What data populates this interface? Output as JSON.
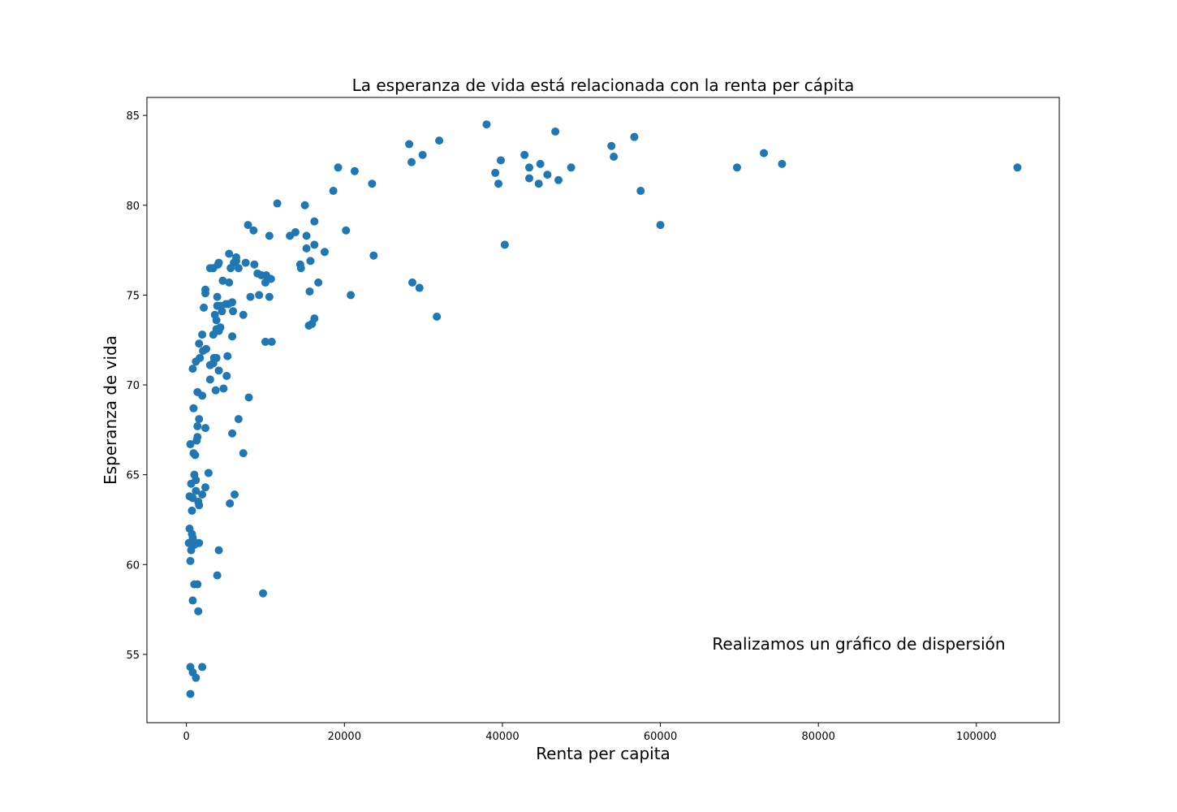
{
  "chart_data": {
    "type": "scatter",
    "title": "La esperanza de vida está relacionada con la renta per cápita",
    "xlabel": "Renta per capita",
    "ylabel": "Esperanza de vida",
    "annotation": "Realizamos un gráfico de dispersión",
    "xlim": [
      -5000,
      110500
    ],
    "ylim": [
      51.2,
      86.0
    ],
    "xticks": [
      0,
      20000,
      40000,
      60000,
      80000,
      100000
    ],
    "xtick_labels": [
      "0",
      "20000",
      "40000",
      "60000",
      "80000",
      "100000"
    ],
    "yticks": [
      55,
      60,
      65,
      70,
      75,
      80,
      85
    ],
    "ytick_labels": [
      "55",
      "60",
      "65",
      "70",
      "75",
      "80",
      "85"
    ],
    "grid": false,
    "marker_color": "#1f77b4",
    "points": [
      [
        38000,
        84.5
      ],
      [
        46700,
        84.1
      ],
      [
        56700,
        83.8
      ],
      [
        32000,
        83.6
      ],
      [
        28200,
        83.4
      ],
      [
        53800,
        83.3
      ],
      [
        73100,
        82.9
      ],
      [
        29900,
        82.8
      ],
      [
        42800,
        82.8
      ],
      [
        54100,
        82.7
      ],
      [
        39800,
        82.5
      ],
      [
        28500,
        82.4
      ],
      [
        44800,
        82.3
      ],
      [
        75400,
        82.3
      ],
      [
        19200,
        82.1
      ],
      [
        43400,
        82.1
      ],
      [
        48700,
        82.1
      ],
      [
        69700,
        82.1
      ],
      [
        105200,
        82.1
      ],
      [
        21300,
        81.9
      ],
      [
        39100,
        81.8
      ],
      [
        45700,
        81.7
      ],
      [
        43400,
        81.5
      ],
      [
        47100,
        81.4
      ],
      [
        23500,
        81.2
      ],
      [
        39500,
        81.2
      ],
      [
        44600,
        81.2
      ],
      [
        18600,
        80.8
      ],
      [
        57500,
        80.8
      ],
      [
        11500,
        80.1
      ],
      [
        15000,
        80.0
      ],
      [
        16200,
        79.1
      ],
      [
        7800,
        78.9
      ],
      [
        60000,
        78.9
      ],
      [
        8500,
        78.6
      ],
      [
        20200,
        78.6
      ],
      [
        13800,
        78.5
      ],
      [
        10500,
        78.3
      ],
      [
        13100,
        78.3
      ],
      [
        15200,
        78.3
      ],
      [
        40300,
        77.8
      ],
      [
        16200,
        77.8
      ],
      [
        15200,
        77.6
      ],
      [
        17500,
        77.4
      ],
      [
        5400,
        77.3
      ],
      [
        23700,
        77.2
      ],
      [
        6300,
        77.1
      ],
      [
        6300,
        76.9
      ],
      [
        15700,
        76.9
      ],
      [
        4100,
        76.8
      ],
      [
        7500,
        76.8
      ],
      [
        6000,
        76.8
      ],
      [
        4000,
        76.7
      ],
      [
        8600,
        76.7
      ],
      [
        14400,
        76.7
      ],
      [
        5600,
        76.5
      ],
      [
        3000,
        76.5
      ],
      [
        3400,
        76.5
      ],
      [
        6600,
        76.5
      ],
      [
        14500,
        76.5
      ],
      [
        9000,
        76.2
      ],
      [
        9500,
        76.1
      ],
      [
        10100,
        76.1
      ],
      [
        10700,
        75.9
      ],
      [
        4600,
        75.8
      ],
      [
        16700,
        75.7
      ],
      [
        5400,
        75.7
      ],
      [
        10000,
        75.7
      ],
      [
        28600,
        75.7
      ],
      [
        29500,
        75.4
      ],
      [
        2400,
        75.3
      ],
      [
        15600,
        75.2
      ],
      [
        2400,
        75.1
      ],
      [
        20800,
        75.0
      ],
      [
        9200,
        75.0
      ],
      [
        3900,
        74.9
      ],
      [
        8100,
        74.9
      ],
      [
        10500,
        74.9
      ],
      [
        5800,
        74.6
      ],
      [
        5000,
        74.5
      ],
      [
        5300,
        74.5
      ],
      [
        3900,
        74.4
      ],
      [
        4300,
        74.4
      ],
      [
        2200,
        74.3
      ],
      [
        4500,
        74.1
      ],
      [
        5900,
        74.1
      ],
      [
        3600,
        73.9
      ],
      [
        7200,
        73.9
      ],
      [
        31700,
        73.8
      ],
      [
        16200,
        73.7
      ],
      [
        3800,
        73.6
      ],
      [
        15900,
        73.4
      ],
      [
        15500,
        73.3
      ],
      [
        4300,
        73.2
      ],
      [
        3800,
        73.1
      ],
      [
        4100,
        73.0
      ],
      [
        2000,
        72.8
      ],
      [
        3400,
        72.8
      ],
      [
        5800,
        72.7
      ],
      [
        10000,
        72.4
      ],
      [
        10800,
        72.4
      ],
      [
        1600,
        72.3
      ],
      [
        2500,
        72.0
      ],
      [
        2100,
        71.9
      ],
      [
        5200,
        71.6
      ],
      [
        1700,
        71.5
      ],
      [
        3500,
        71.5
      ],
      [
        3800,
        71.5
      ],
      [
        3400,
        71.2
      ],
      [
        1200,
        71.3
      ],
      [
        3000,
        71.1
      ],
      [
        800,
        70.9
      ],
      [
        4100,
        70.8
      ],
      [
        5100,
        70.5
      ],
      [
        3000,
        70.3
      ],
      [
        4700,
        69.8
      ],
      [
        3700,
        69.7
      ],
      [
        1400,
        69.6
      ],
      [
        2000,
        69.4
      ],
      [
        7900,
        69.3
      ],
      [
        900,
        68.7
      ],
      [
        1600,
        68.1
      ],
      [
        6600,
        68.1
      ],
      [
        1400,
        67.7
      ],
      [
        2400,
        67.6
      ],
      [
        5800,
        67.3
      ],
      [
        1400,
        67.1
      ],
      [
        1300,
        66.9
      ],
      [
        500,
        66.7
      ],
      [
        7200,
        66.2
      ],
      [
        900,
        66.2
      ],
      [
        1100,
        66.1
      ],
      [
        2800,
        65.1
      ],
      [
        1000,
        65.0
      ],
      [
        1200,
        64.7
      ],
      [
        600,
        64.5
      ],
      [
        2400,
        64.3
      ],
      [
        1200,
        64.1
      ],
      [
        2000,
        63.9
      ],
      [
        6100,
        63.9
      ],
      [
        400,
        63.8
      ],
      [
        800,
        63.7
      ],
      [
        1500,
        63.5
      ],
      [
        1600,
        63.3
      ],
      [
        5500,
        63.4
      ],
      [
        700,
        63.0
      ],
      [
        400,
        62.0
      ],
      [
        700,
        61.7
      ],
      [
        800,
        61.5
      ],
      [
        900,
        61.3
      ],
      [
        300,
        61.2
      ],
      [
        1000,
        61.1
      ],
      [
        1600,
        61.2
      ],
      [
        600,
        60.8
      ],
      [
        4100,
        60.8
      ],
      [
        500,
        60.2
      ],
      [
        1000,
        58.9
      ],
      [
        1400,
        58.9
      ],
      [
        3900,
        59.4
      ],
      [
        9700,
        58.4
      ],
      [
        800,
        58.0
      ],
      [
        1500,
        57.4
      ],
      [
        500,
        54.3
      ],
      [
        2000,
        54.3
      ],
      [
        800,
        54.0
      ],
      [
        1200,
        53.7
      ],
      [
        500,
        52.8
      ]
    ]
  }
}
